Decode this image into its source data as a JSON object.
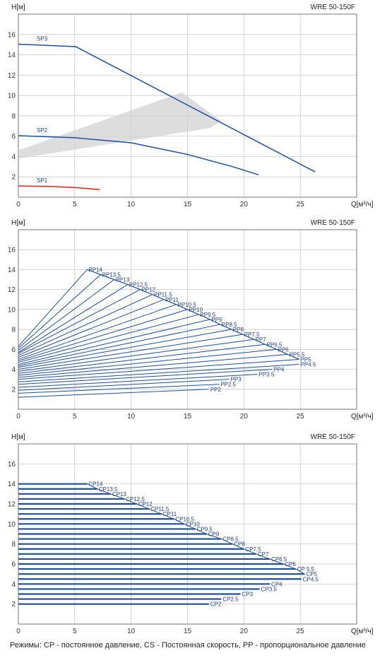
{
  "footer": "Режимы: CP - постоянное давление, CS - Постоянная скорость, PP - пропорциональное давление",
  "colors": {
    "curve": "#1f4e9c",
    "sp1": "#e0201b",
    "band": "#d2d2d2",
    "grid": "#bfbfbf",
    "frame": "#555555"
  },
  "chart_data": [
    {
      "type": "line",
      "title": "WRE 50-150F",
      "ylabel": "H[м]",
      "xlabel": "Q[м³/ч]",
      "xlim": [
        0,
        30
      ],
      "ylim": [
        0,
        18
      ],
      "xticks": [
        0,
        5,
        10,
        15,
        20,
        25
      ],
      "yticks": [
        2,
        4,
        6,
        8,
        10,
        12,
        14,
        16
      ],
      "grid": true,
      "series": [
        {
          "name": "SP3",
          "color": "#1f4e9c",
          "points": [
            [
              0,
              15.05
            ],
            [
              5.1,
              14.8
            ],
            [
              26.3,
              2.5
            ]
          ]
        },
        {
          "name": "SP2",
          "color": "#1f4e9c",
          "points": [
            [
              0,
              6.05
            ],
            [
              5,
              5.85
            ],
            [
              10,
              5.35
            ],
            [
              15,
              4.2
            ],
            [
              19,
              3
            ],
            [
              21.3,
              2.2
            ]
          ]
        },
        {
          "name": "SP1",
          "color": "#e0201b",
          "points": [
            [
              0,
              1.1
            ],
            [
              3,
              1.05
            ],
            [
              5,
              0.95
            ],
            [
              7.2,
              0.75
            ]
          ]
        }
      ],
      "band": [
        [
          0,
          4.6
        ],
        [
          0,
          3.8
        ],
        [
          17,
          6.8
        ],
        [
          18,
          7.5
        ],
        [
          14.5,
          10.3
        ]
      ]
    },
    {
      "type": "line",
      "title": "WRE 50-150F",
      "ylabel": "H[м]",
      "xlabel": "Q[м³/ч]",
      "xlim": [
        0,
        30
      ],
      "ylim": [
        0,
        18
      ],
      "xticks": [
        0,
        5,
        10,
        15,
        20,
        25
      ],
      "yticks": [
        2,
        4,
        6,
        8,
        10,
        12,
        14,
        16
      ],
      "grid": true,
      "series": [
        {
          "name": "PP14",
          "h0": 6.3,
          "q": 6.1,
          "h": 14.0
        },
        {
          "name": "PP13.5",
          "h0": 6.1,
          "q": 7.3,
          "h": 13.5
        },
        {
          "name": "PP13",
          "h0": 5.9,
          "q": 8.5,
          "h": 13.0
        },
        {
          "name": "PP12.5",
          "h0": 5.7,
          "q": 9.7,
          "h": 12.5
        },
        {
          "name": "PP12",
          "h0": 5.6,
          "q": 10.8,
          "h": 12.0
        },
        {
          "name": "PP11.5",
          "h0": 5.4,
          "q": 11.9,
          "h": 11.5
        },
        {
          "name": "PP11",
          "h0": 5.2,
          "q": 12.9,
          "h": 11.0
        },
        {
          "name": "PP10.5",
          "h0": 5.0,
          "q": 14.0,
          "h": 10.5
        },
        {
          "name": "PP10",
          "h0": 4.85,
          "q": 15.0,
          "h": 10.0
        },
        {
          "name": "PP9.5",
          "h0": 4.7,
          "q": 16.0,
          "h": 9.5
        },
        {
          "name": "PP9",
          "h0": 4.5,
          "q": 17.0,
          "h": 9.0
        },
        {
          "name": "PP8.5",
          "h0": 4.35,
          "q": 17.9,
          "h": 8.5
        },
        {
          "name": "PP8",
          "h0": 4.2,
          "q": 18.9,
          "h": 8.0
        },
        {
          "name": "PP7.5",
          "h0": 4.0,
          "q": 19.9,
          "h": 7.5
        },
        {
          "name": "PP7",
          "h0": 3.8,
          "q": 20.9,
          "h": 7.0
        },
        {
          "name": "PP6.5",
          "h0": 3.6,
          "q": 21.9,
          "h": 6.5
        },
        {
          "name": "PP6",
          "h0": 3.4,
          "q": 22.9,
          "h": 6.0
        },
        {
          "name": "PP5.5",
          "h0": 3.2,
          "q": 23.9,
          "h": 5.5
        },
        {
          "name": "PP5",
          "h0": 3.0,
          "q": 24.9,
          "h": 5.0
        },
        {
          "name": "PP4.5",
          "h0": 2.75,
          "q": 24.9,
          "h": 4.5
        },
        {
          "name": "PP4",
          "h0": 2.5,
          "q": 22.5,
          "h": 4.0
        },
        {
          "name": "PP3.5",
          "h0": 2.2,
          "q": 21.2,
          "h": 3.5
        },
        {
          "name": "PP3",
          "h0": 1.9,
          "q": 18.7,
          "h": 3.0
        },
        {
          "name": "PP2.5",
          "h0": 1.6,
          "q": 17.8,
          "h": 2.5
        },
        {
          "name": "PP2",
          "h0": 1.2,
          "q": 16.9,
          "h": 2.0
        }
      ]
    },
    {
      "type": "line",
      "title": "WRE 50-150F",
      "ylabel": "H[м]",
      "xlabel": "Q[м³/ч]",
      "xlim": [
        0,
        30
      ],
      "ylim": [
        0,
        18
      ],
      "xticks": [
        0,
        5,
        10,
        15,
        20,
        25
      ],
      "yticks": [
        2,
        4,
        6,
        8,
        10,
        12,
        14,
        16
      ],
      "grid": true,
      "series": [
        {
          "name": "CP14",
          "h": 14.0,
          "q": 6.1
        },
        {
          "name": "CP13.5",
          "h": 13.5,
          "q": 7.0
        },
        {
          "name": "CP13",
          "h": 13.0,
          "q": 8.2
        },
        {
          "name": "CP12.5",
          "h": 12.5,
          "q": 9.4
        },
        {
          "name": "CP12",
          "h": 12.0,
          "q": 10.5
        },
        {
          "name": "CP11.5",
          "h": 11.5,
          "q": 11.6
        },
        {
          "name": "CP11",
          "h": 11.0,
          "q": 12.7
        },
        {
          "name": "CP10.5",
          "h": 10.5,
          "q": 13.8
        },
        {
          "name": "CP10",
          "h": 10.0,
          "q": 14.7
        },
        {
          "name": "CP9.5",
          "h": 9.5,
          "q": 15.7
        },
        {
          "name": "CP9",
          "h": 9.0,
          "q": 16.7
        },
        {
          "name": "CP8.5",
          "h": 8.5,
          "q": 18.0
        },
        {
          "name": "CP8",
          "h": 8.0,
          "q": 19.0
        },
        {
          "name": "CP7.5",
          "h": 7.5,
          "q": 20.0
        },
        {
          "name": "CP7",
          "h": 7.0,
          "q": 21.1
        },
        {
          "name": "CP6.5",
          "h": 6.5,
          "q": 22.3
        },
        {
          "name": "CP6",
          "h": 6.0,
          "q": 23.5
        },
        {
          "name": "CP 5.5",
          "h": 5.5,
          "q": 24.6
        },
        {
          "name": "CP5",
          "h": 5.0,
          "q": 25.4
        },
        {
          "name": "CP4.5",
          "h": 4.5,
          "q": 25.1
        },
        {
          "name": "CP4",
          "h": 4.0,
          "q": 22.3
        },
        {
          "name": "CP3.5",
          "h": 3.5,
          "q": 21.4
        },
        {
          "name": "CP3",
          "h": 3.0,
          "q": 19.7
        },
        {
          "name": "CP2.5",
          "h": 2.5,
          "q": 18.0
        },
        {
          "name": "CP2",
          "h": 2.0,
          "q": 16.9
        }
      ]
    }
  ]
}
